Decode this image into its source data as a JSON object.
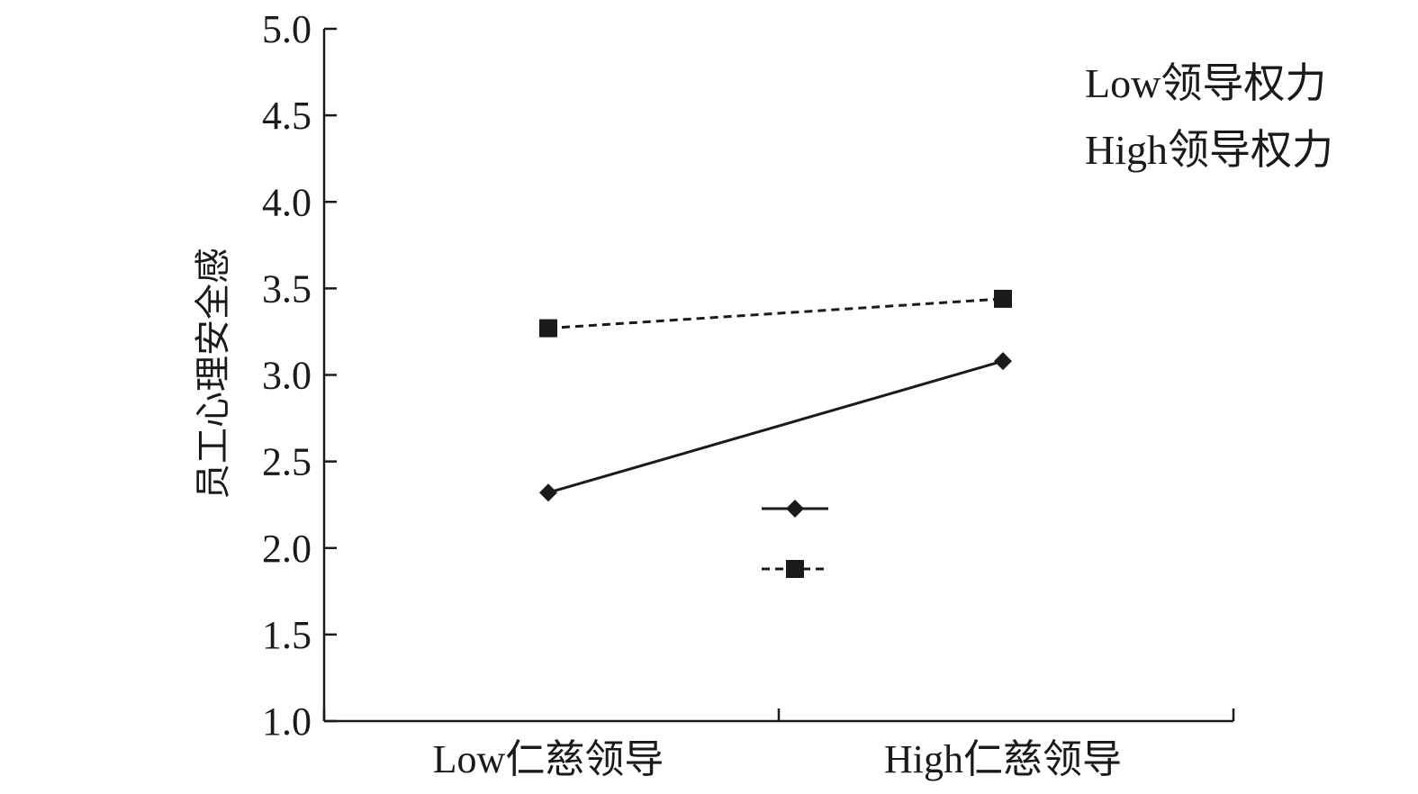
{
  "chart_data": {
    "type": "line",
    "title": "",
    "xlabel": "",
    "ylabel": "员工心理安全感",
    "categories": [
      "Low仁慈领导",
      "High仁慈领导"
    ],
    "ylim": [
      1.0,
      5.0
    ],
    "yticks": [
      "1.0",
      "1.5",
      "2.0",
      "2.5",
      "3.0",
      "3.5",
      "4.0",
      "4.5",
      "5.0"
    ],
    "grid": false,
    "legend_position": "top-right",
    "series": [
      {
        "name": "Low领导权力",
        "values": [
          2.32,
          3.08
        ],
        "marker": "diamond",
        "line_style": "solid",
        "color": "#1a1a1a"
      },
      {
        "name": "High领导权力",
        "values": [
          3.27,
          3.44
        ],
        "marker": "square",
        "line_style": "dashed",
        "color": "#1a1a1a"
      }
    ]
  }
}
